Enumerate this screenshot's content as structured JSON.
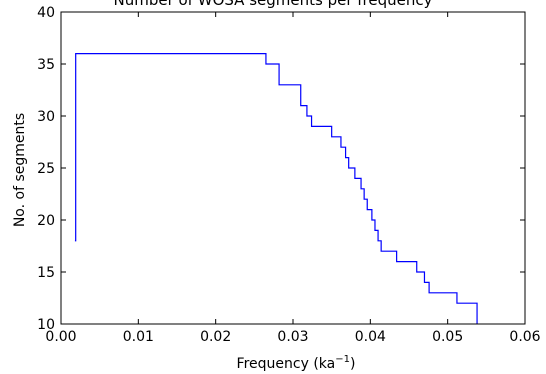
{
  "chart_data": {
    "type": "line",
    "title": "Number of WOSA segments per frequency",
    "xlabel": "Frequency (ka",
    "xlabel_sup": "−1",
    "xlabel_end": ")",
    "ylabel": "No. of segments",
    "xlim": [
      0.0,
      0.06
    ],
    "ylim": [
      10,
      40
    ],
    "xticks": [
      0.0,
      0.01,
      0.02,
      0.03,
      0.04,
      0.05,
      0.06
    ],
    "xtick_labels": [
      "0.00",
      "0.01",
      "0.02",
      "0.03",
      "0.04",
      "0.05",
      "0.06"
    ],
    "yticks": [
      10,
      15,
      20,
      25,
      30,
      35,
      40
    ],
    "ytick_labels": [
      "10",
      "15",
      "20",
      "25",
      "30",
      "35",
      "40"
    ],
    "grid": false,
    "line_color": "#0000ff",
    "series": [
      {
        "step": "post",
        "x": [
          0.0018,
          0.0019,
          0.0265,
          0.0282,
          0.031,
          0.0318,
          0.0324,
          0.035,
          0.0362,
          0.0368,
          0.0372,
          0.038,
          0.0388,
          0.0392,
          0.0396,
          0.0402,
          0.0406,
          0.041,
          0.0414,
          0.0418,
          0.0434,
          0.046,
          0.047,
          0.0476,
          0.0512,
          0.0538
        ],
        "y": [
          18,
          36,
          35,
          33,
          31,
          30,
          29,
          28,
          27,
          26,
          25,
          24,
          23,
          22,
          21,
          20,
          19,
          18,
          17,
          17,
          16,
          15,
          14,
          13,
          12,
          10
        ]
      }
    ]
  }
}
